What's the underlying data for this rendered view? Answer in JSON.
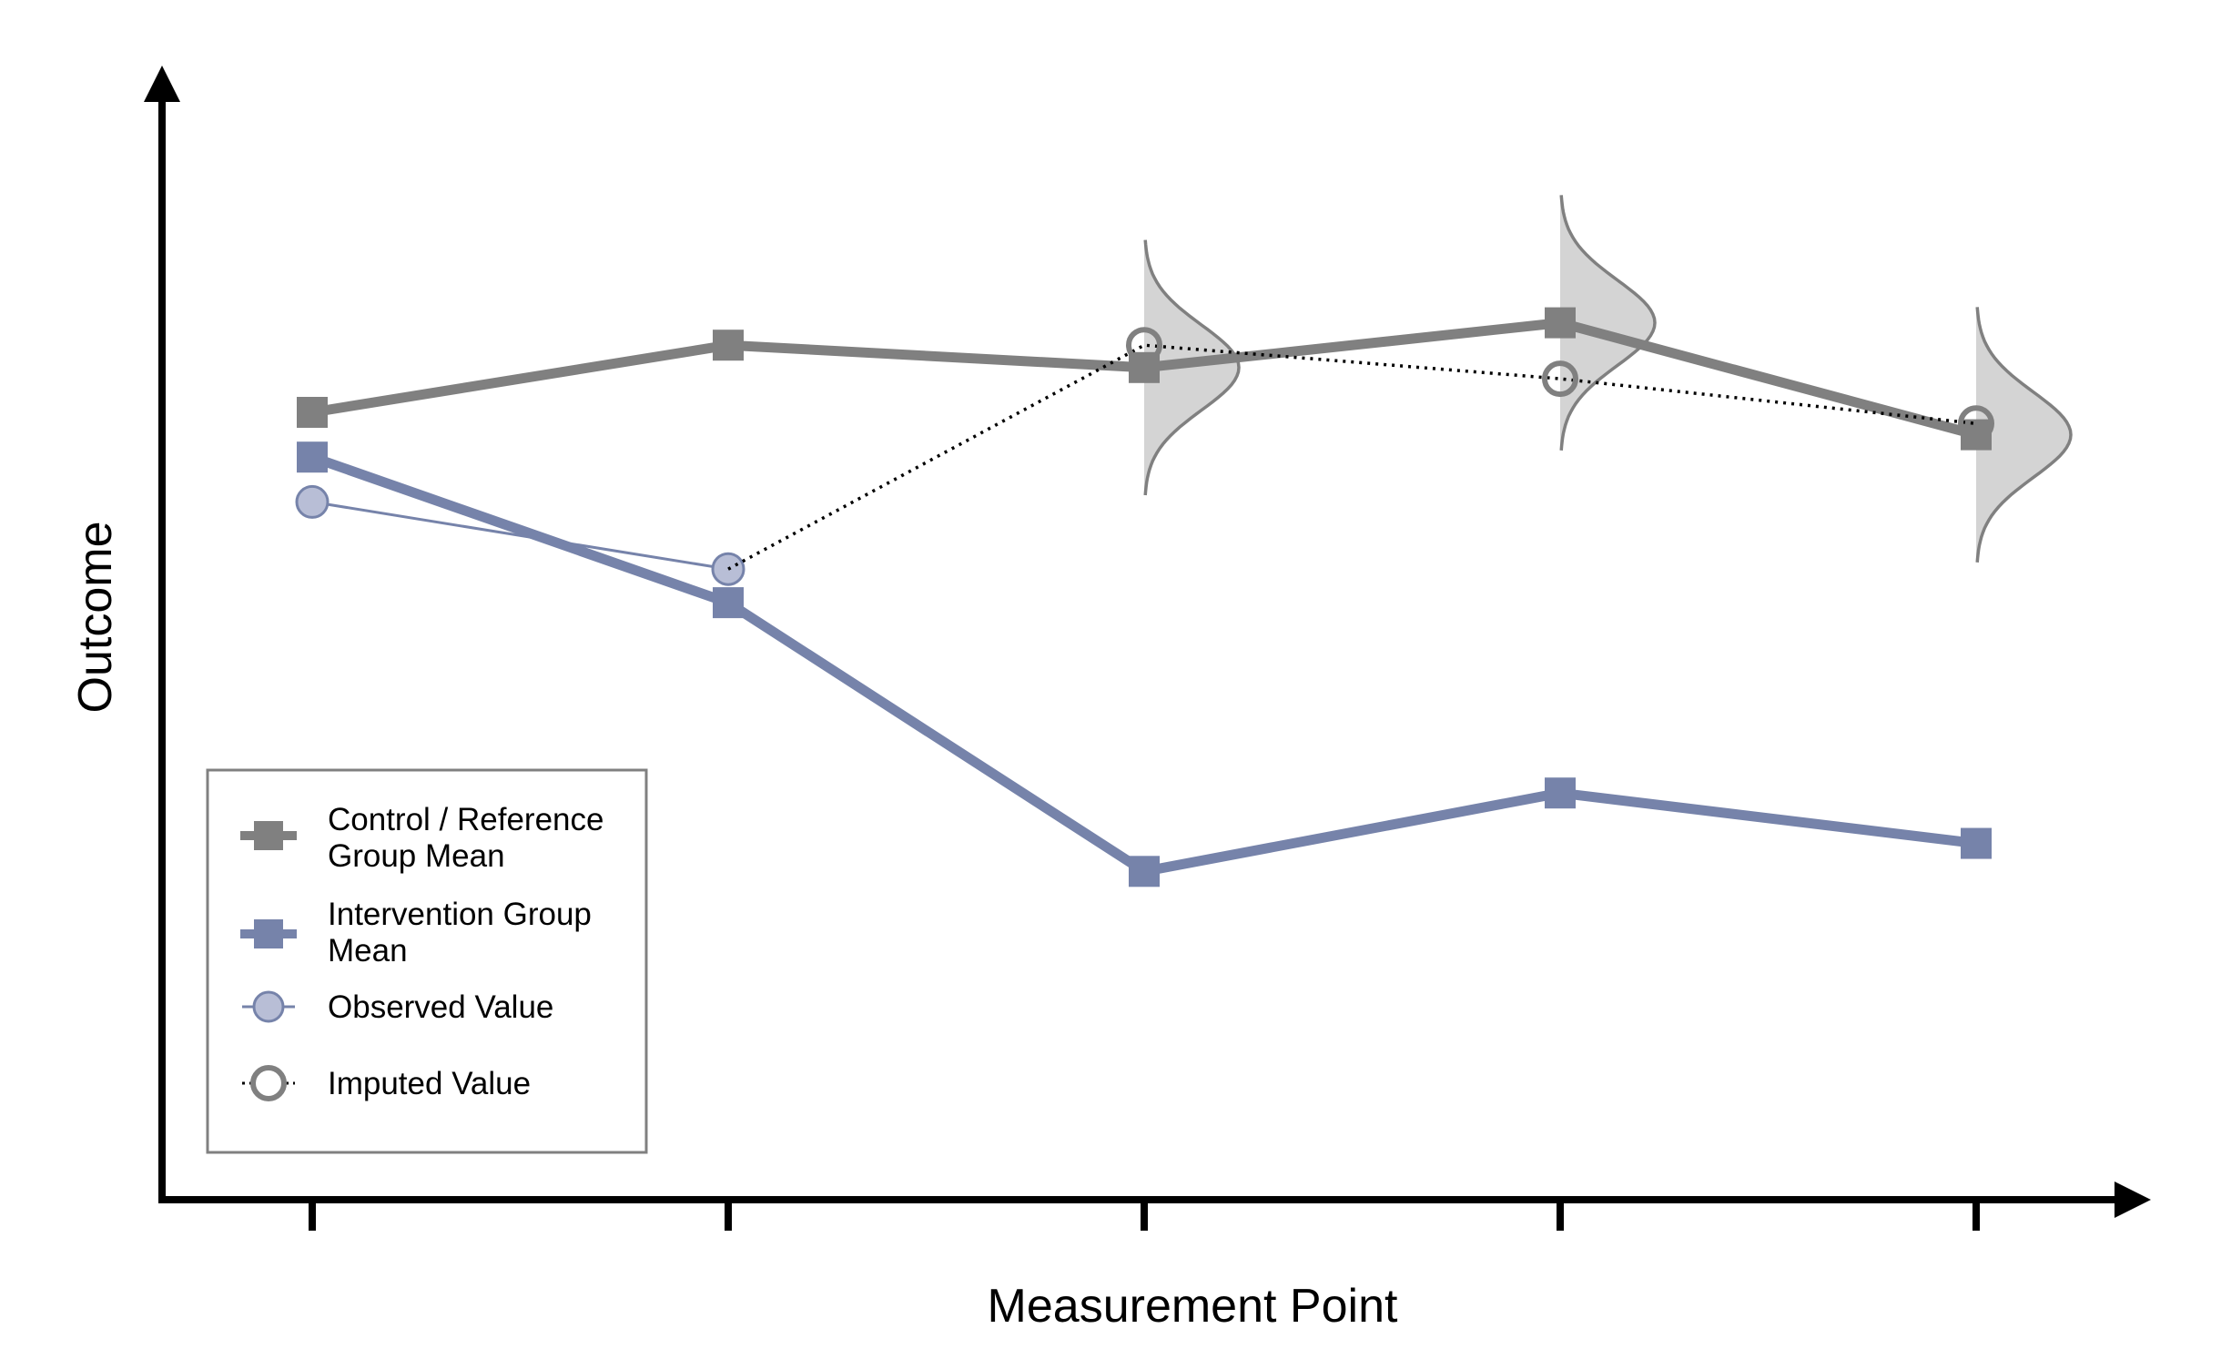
{
  "chart_data": {
    "type": "line",
    "title": "",
    "xlabel": "Measurement Point",
    "ylabel": "Outcome",
    "x": [
      1,
      2,
      3,
      4,
      5
    ],
    "ylim": [
      0,
      100
    ],
    "grid": false,
    "legend_position": "bottom-left",
    "series": [
      {
        "name": "Control / Reference Group Mean",
        "marker": "square",
        "line": "solid-thick",
        "color": "#808080",
        "values": [
          70,
          76,
          74,
          78,
          68
        ]
      },
      {
        "name": "Intervention Group Mean",
        "marker": "square",
        "line": "solid-thick",
        "color": "#7683aa",
        "values": [
          66,
          53,
          29,
          36,
          31.5
        ]
      },
      {
        "name": "Observed Value",
        "marker": "filled-circle",
        "line": "solid-thin",
        "color": "#7683aa",
        "fill": "#b8bed6",
        "values": [
          62,
          56,
          null,
          null,
          null
        ]
      },
      {
        "name": "Imputed Value",
        "marker": "open-circle",
        "line": "dotted",
        "color": "#808080",
        "values": [
          null,
          56,
          76,
          73,
          69
        ]
      }
    ],
    "distributions": [
      {
        "x": 3,
        "center": 74,
        "spread": 3.8
      },
      {
        "x": 4,
        "center": 78,
        "spread": 3.8
      },
      {
        "x": 5,
        "center": 68,
        "spread": 3.8
      }
    ],
    "colors": {
      "axis": "#000000",
      "distribution_fill": "#d4d4d4",
      "distribution_stroke": "#808080",
      "legend_border": "#808080"
    }
  },
  "legend": {
    "items": [
      {
        "lines": [
          "Control / Reference",
          "Group Mean"
        ]
      },
      {
        "lines": [
          "Intervention Group",
          "Mean"
        ]
      },
      {
        "lines": [
          "Observed Value"
        ]
      },
      {
        "lines": [
          "Imputed Value"
        ]
      }
    ]
  }
}
